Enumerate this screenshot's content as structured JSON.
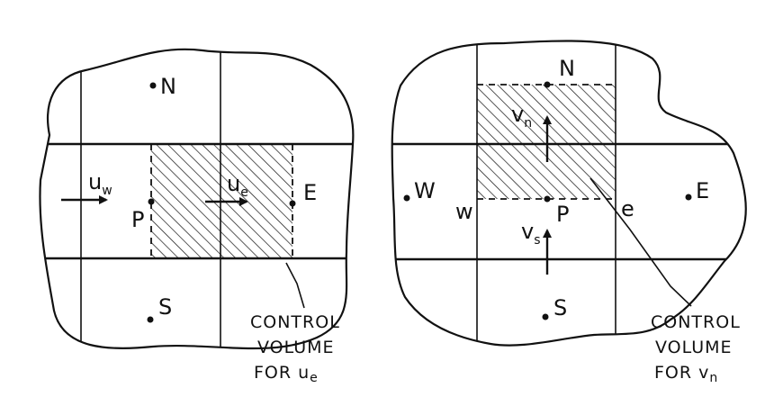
{
  "left_panel": {
    "nodes": {
      "N": "N",
      "P": "P",
      "E": "E",
      "S": "S"
    },
    "velocity_w": {
      "base": "u",
      "sub": "w"
    },
    "velocity_e": {
      "base": "u",
      "sub": "e"
    },
    "caption": {
      "line1": "CONTROL",
      "line2": "VOLUME",
      "line3_prefix": "FOR ",
      "var_base": "u",
      "var_sub": "e"
    }
  },
  "right_panel": {
    "nodes": {
      "N": "N",
      "W": "W",
      "P": "P",
      "E": "E",
      "S": "S"
    },
    "faces": {
      "w": "w",
      "e": "e"
    },
    "velocity_n": {
      "base": "v",
      "sub": "n"
    },
    "velocity_s": {
      "base": "v",
      "sub": "s"
    },
    "caption": {
      "line1": "CONTROL",
      "line2": "VOLUME",
      "line3_prefix": "FOR ",
      "var_base": "v",
      "var_sub": "n"
    }
  }
}
